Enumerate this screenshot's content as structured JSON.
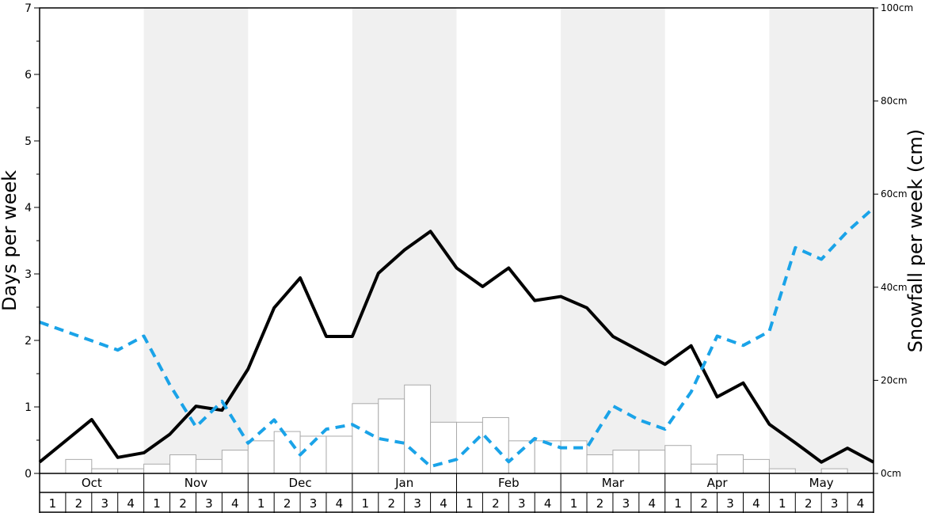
{
  "chart_data": {
    "type": "bar",
    "months": [
      "Oct",
      "Nov",
      "Dec",
      "Jan",
      "Feb",
      "Mar",
      "Apr",
      "May"
    ],
    "weeks": [
      "1",
      "2",
      "3",
      "4"
    ],
    "y_left": {
      "label": "Days per week",
      "ylim": [
        0,
        7
      ],
      "ticks": [
        "0",
        "1",
        "2",
        "3",
        "4",
        "5",
        "6",
        "7"
      ]
    },
    "y_right": {
      "label": "Snowfall per week (cm)",
      "ylim": [
        0,
        100
      ],
      "ticks": [
        "0cm",
        "20cm",
        "40cm",
        "60cm",
        "80cm",
        "100cm"
      ]
    },
    "shaded_months": [
      "Nov",
      "Jan",
      "Mar",
      "May"
    ],
    "series": [
      {
        "kind": "bar",
        "axis": "left",
        "color": "#ffffff",
        "edge_color": "#aaaaaa",
        "values": [
          0,
          0.21,
          0.07,
          0.07,
          0.14,
          0.28,
          0.21,
          0.35,
          0.49,
          0.63,
          0.56,
          0.56,
          1.05,
          1.12,
          1.33,
          0.77,
          0.77,
          0.84,
          0.49,
          0.49,
          0.49,
          0.28,
          0.35,
          0.35,
          0.42,
          0.14,
          0.28,
          0.21,
          0.07,
          0,
          0.07,
          0
        ]
      },
      {
        "kind": "line",
        "style": "solid",
        "axis": "left",
        "color": "#000000",
        "values": [
          0.17,
          0.49,
          0.81,
          0.24,
          0.31,
          0.59,
          1.01,
          0.95,
          1.57,
          2.49,
          2.94,
          2.06,
          2.06,
          3.01,
          3.36,
          3.64,
          3.09,
          2.81,
          3.09,
          2.6,
          2.66,
          2.49,
          2.06,
          1.85,
          1.64,
          1.92,
          1.15,
          1.36,
          0.74,
          0.46,
          0.17,
          0.38,
          0.17
        ]
      },
      {
        "kind": "line",
        "style": "dashed",
        "axis": "right",
        "color": "#1aa3e8",
        "values": [
          32.5,
          30.5,
          28.5,
          26.5,
          29.5,
          19.0,
          10.0,
          15.5,
          6.5,
          11.5,
          4.0,
          9.5,
          10.5,
          7.5,
          6.5,
          1.5,
          3.0,
          8.5,
          2.5,
          7.5,
          5.5,
          5.5,
          14.5,
          11.5,
          9.5,
          17.5,
          29.5,
          27.5,
          30.5,
          48.5,
          46.0,
          52.0,
          57.0
        ]
      }
    ]
  }
}
